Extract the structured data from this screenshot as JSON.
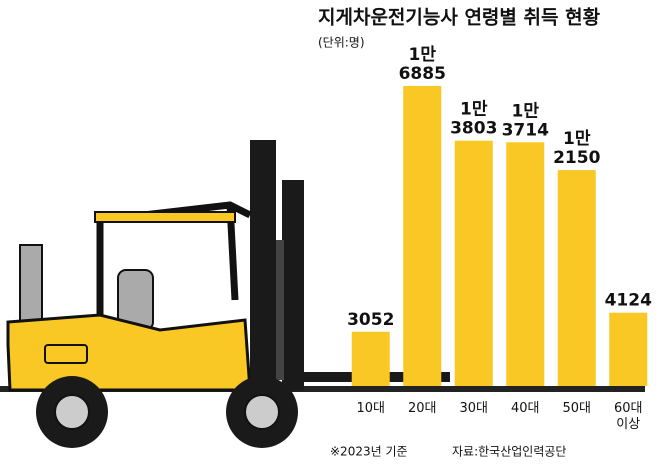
{
  "chart_data": {
    "type": "bar",
    "title": "지게차운전기능사 연령별 취득 현황",
    "subtitle": "(단위:명)",
    "notes": [
      "※2023년 기준",
      "자료:한국산업인력공단"
    ],
    "categories": [
      "10대",
      "20대",
      "30대",
      "40대",
      "50대",
      "60대 이상"
    ],
    "values": [
      3052,
      16885,
      13803,
      13714,
      12150,
      4124
    ],
    "value_labels": [
      "3052",
      "1만 6885",
      "1만 3803",
      "1만 3714",
      "1만 2150",
      "4124"
    ],
    "color": "#f9c824",
    "ylim": [
      0,
      17500
    ]
  }
}
